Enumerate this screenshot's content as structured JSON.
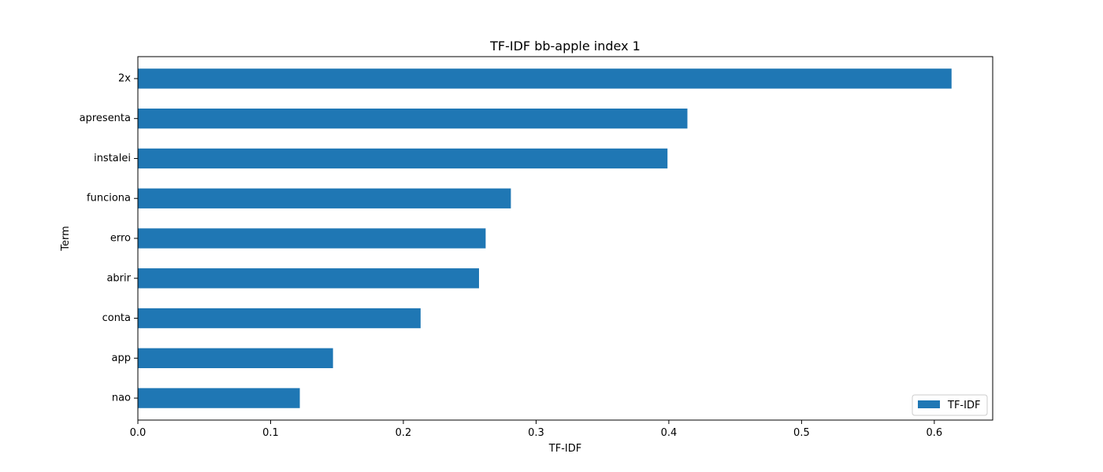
{
  "chart_data": {
    "type": "bar",
    "orientation": "horizontal",
    "title": "TF-IDF bb-apple index 1",
    "xlabel": "TF-IDF",
    "ylabel": "Term",
    "categories": [
      "nao",
      "app",
      "conta",
      "abrir",
      "erro",
      "funciona",
      "instalei",
      "apresenta",
      "2x"
    ],
    "series": [
      {
        "name": "TF-IDF",
        "color": "#1f77b4",
        "values": [
          0.122,
          0.147,
          0.213,
          0.257,
          0.262,
          0.281,
          0.399,
          0.414,
          0.613
        ]
      }
    ],
    "xlim": [
      0.0,
      0.644
    ],
    "xticks": [
      0.0,
      0.1,
      0.2,
      0.3,
      0.4,
      0.5,
      0.6
    ],
    "xtick_labels": [
      "0.0",
      "0.1",
      "0.2",
      "0.3",
      "0.4",
      "0.5",
      "0.6"
    ],
    "grid": false,
    "legend_position": "lower-right"
  }
}
